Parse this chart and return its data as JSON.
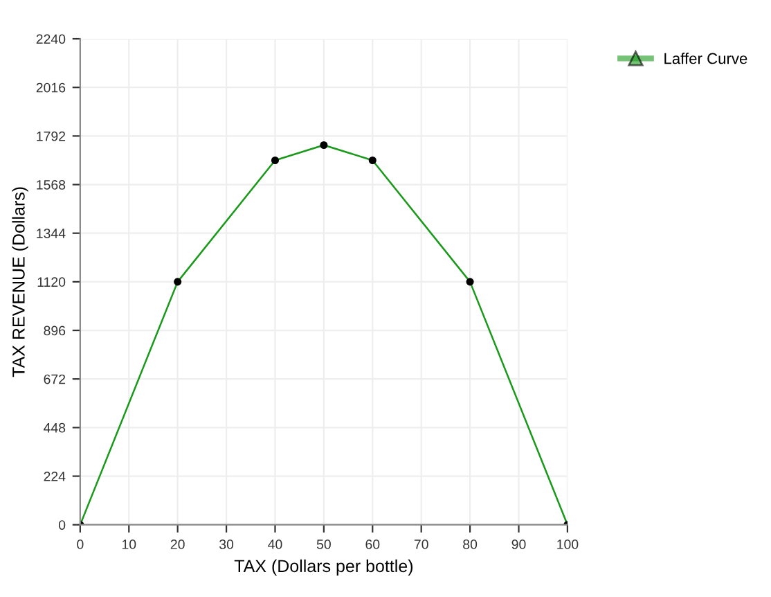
{
  "chart_data": {
    "type": "line",
    "xlabel": "TAX (Dollars per bottle)",
    "ylabel": "TAX REVENUE (Dollars)",
    "x": [
      0,
      20,
      40,
      50,
      60,
      80,
      100
    ],
    "series": [
      {
        "name": "Laffer Curve",
        "color": "#1a9a1a",
        "values": [
          0,
          1120,
          1680,
          1750,
          1680,
          1120,
          0
        ]
      }
    ],
    "xlim": [
      0,
      100
    ],
    "xticks": [
      0,
      10,
      20,
      30,
      40,
      50,
      60,
      70,
      80,
      90,
      100
    ],
    "ylim": [
      0,
      2240
    ],
    "yticks": [
      0,
      224,
      448,
      672,
      896,
      1120,
      1344,
      1568,
      1792,
      2016,
      2240
    ],
    "grid": true,
    "legend": "top right",
    "marker": "circle",
    "line_style": "solid"
  }
}
